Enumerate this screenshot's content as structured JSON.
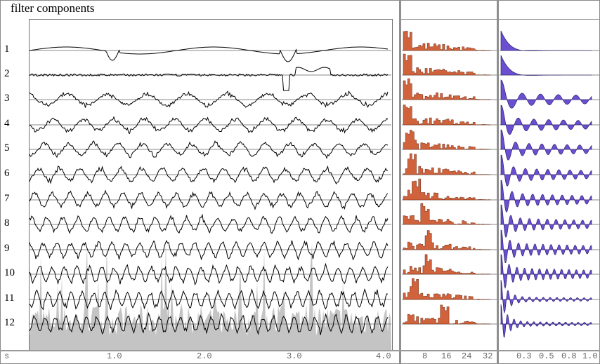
{
  "title": "filter components",
  "chart_data": [
    {
      "type": "line",
      "title": "filter components",
      "xlabel": "s",
      "x_ticks": [
        "1.0",
        "2.0",
        "3.0",
        "4.0"
      ],
      "x_range": [
        0.0,
        4.1
      ],
      "row_labels": [
        "1",
        "2",
        "3",
        "4",
        "5",
        "6",
        "7",
        "8",
        "9",
        "10",
        "11",
        "12"
      ],
      "background_series": "gray filled envelope (signal magnitude)",
      "grid": "horizontal baseline per component",
      "notes": "12 stacked filter-component waveforms; component 1 large deflections near 1.0s and 2.95s; component 2 spike near 2.9s"
    },
    {
      "type": "bar",
      "title": "spectrum histogram",
      "x_ticks": [
        "8",
        "16",
        "24",
        "32"
      ],
      "x_range": [
        0,
        32
      ],
      "color": "#d0623c",
      "rows": 12,
      "peak_bins": [
        1,
        1,
        1,
        1,
        2,
        3,
        5,
        9,
        10,
        10,
        4,
        17
      ]
    },
    {
      "type": "area",
      "title": "autocorrelation",
      "x_ticks": [
        "0.3",
        "0.5",
        "0.8",
        "1.0"
      ],
      "x_range": [
        0,
        1.0
      ],
      "color": "#6a4fd0",
      "rows": 12
    }
  ],
  "axis": {
    "unit_label": "s",
    "time_ticks": [
      "1.0",
      "2.0",
      "3.0",
      "4.0"
    ],
    "freq_ticks": [
      "8",
      "16",
      "24",
      "32"
    ],
    "lag_ticks": [
      "0.3",
      "0.5",
      "0.8",
      "1.0"
    ]
  },
  "colors": {
    "histogram": "#d0623c",
    "autocorr": "#6a4fd0",
    "envelope": "#c4c4c4",
    "frame": "#8a8a8a"
  }
}
